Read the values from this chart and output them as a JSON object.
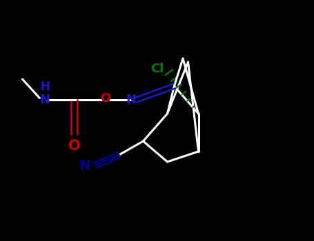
{
  "background_color": "#000000",
  "bond_color": "#ffffff",
  "N_color": "#1a1acd",
  "O_color": "#cc0000",
  "Cl_color": "#008000",
  "CN_color": "#00008b",
  "bond_width": 2.2,
  "font_size_atoms": 13,
  "figsize": [
    4.55,
    3.5
  ],
  "dpi": 100,
  "xlim": [
    0.0,
    9.0
  ],
  "ylim": [
    0.0,
    7.0
  ]
}
